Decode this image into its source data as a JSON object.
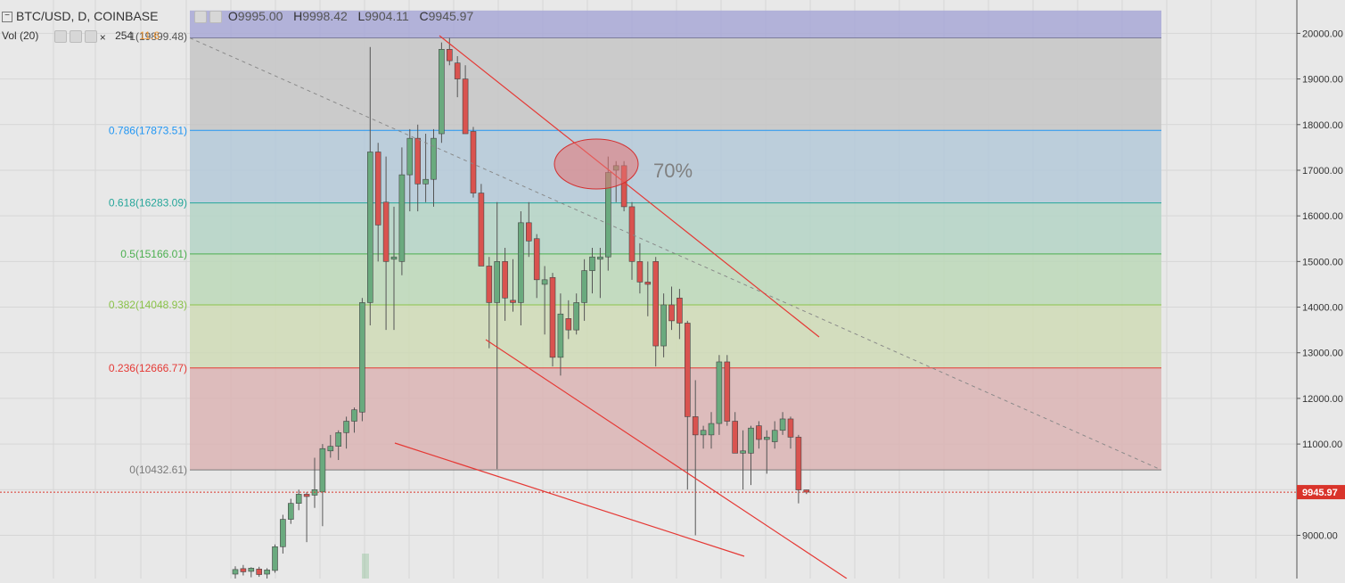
{
  "header": {
    "symbol": "BTC/USD, D, COINBASE",
    "open_label": "O",
    "open": "9995.00",
    "high_label": "H",
    "high": "9998.42",
    "low_label": "L",
    "low": "9904.11",
    "close_label": "C",
    "close": "9945.97",
    "volume_label": "Vol (20)",
    "volume_value": "254",
    "volume_ma": "11.6"
  },
  "colors": {
    "up": "#6aaa7e",
    "down": "#d9534f",
    "trendline": "#e53935",
    "price_tag": "#d9342b",
    "background": "#e8e8e8"
  },
  "chart_data": {
    "type": "candlestick",
    "title": "BTC/USD, D, COINBASE",
    "current_price": 9945.97,
    "current_price_label": "9945.97",
    "ylim": [
      8000,
      20500
    ],
    "y_ticks": [
      "20000.00",
      "19000.00",
      "18000.00",
      "17000.00",
      "16000.00",
      "15000.00",
      "14000.00",
      "13000.00",
      "12000.00",
      "11000.00",
      "10000.00",
      "9000.00"
    ],
    "fibonacci": [
      {
        "label": "1(19899.48)",
        "level": 1,
        "value": 19899.48,
        "color": "#7d7d9c"
      },
      {
        "label": "0.786(17873.51)",
        "level": 0.786,
        "value": 17873.51,
        "color": "#2196f3"
      },
      {
        "label": "0.618(16283.09)",
        "level": 0.618,
        "value": 16283.09,
        "color": "#26a69a"
      },
      {
        "label": "0.5(15166.01)",
        "level": 0.5,
        "value": 15166.01,
        "color": "#4caf50"
      },
      {
        "label": "0.382(14048.93)",
        "level": 0.382,
        "value": 14048.93,
        "color": "#8bc34a"
      },
      {
        "label": "0.236(12666.77)",
        "level": 0.236,
        "value": 12666.77,
        "color": "#e53935"
      },
      {
        "label": "0(10432.61)",
        "level": 0,
        "value": 10432.61,
        "color": "#7a7a7a"
      }
    ],
    "fib_bands": [
      {
        "from": 20500,
        "to": 19899.48,
        "color": "#a8a8d6"
      },
      {
        "from": 19899.48,
        "to": 17873.51,
        "color": "#c6c6c6"
      },
      {
        "from": 17873.51,
        "to": 16283.09,
        "color": "#b4c9d8"
      },
      {
        "from": 16283.09,
        "to": 15166.01,
        "color": "#b4d4c6"
      },
      {
        "from": 15166.01,
        "to": 14048.93,
        "color": "#bcd8b8"
      },
      {
        "from": 14048.93,
        "to": 12666.77,
        "color": "#cfdbb6"
      },
      {
        "from": 12666.77,
        "to": 10432.61,
        "color": "#dbb4b4"
      }
    ],
    "annotation": "70%",
    "candles": [
      {
        "o": 8150,
        "h": 8320,
        "l": 8050,
        "c": 8250
      },
      {
        "o": 8270,
        "h": 8350,
        "l": 8120,
        "c": 8200
      },
      {
        "o": 8210,
        "h": 8300,
        "l": 8080,
        "c": 8280
      },
      {
        "o": 8260,
        "h": 8310,
        "l": 8090,
        "c": 8140
      },
      {
        "o": 8150,
        "h": 8280,
        "l": 8050,
        "c": 8240
      },
      {
        "o": 8230,
        "h": 8800,
        "l": 8180,
        "c": 8750
      },
      {
        "o": 8750,
        "h": 9450,
        "l": 8600,
        "c": 9350
      },
      {
        "o": 9350,
        "h": 9800,
        "l": 9250,
        "c": 9700
      },
      {
        "o": 9700,
        "h": 10000,
        "l": 9550,
        "c": 9900
      },
      {
        "o": 9900,
        "h": 9950,
        "l": 8850,
        "c": 9850
      },
      {
        "o": 9880,
        "h": 10700,
        "l": 9600,
        "c": 10000
      },
      {
        "o": 9950,
        "h": 11000,
        "l": 9200,
        "c": 10900
      },
      {
        "o": 10850,
        "h": 11200,
        "l": 10700,
        "c": 10950
      },
      {
        "o": 10950,
        "h": 11300,
        "l": 10650,
        "c": 11250
      },
      {
        "o": 11250,
        "h": 11600,
        "l": 10900,
        "c": 11500
      },
      {
        "o": 11500,
        "h": 11800,
        "l": 11250,
        "c": 11750
      },
      {
        "o": 11700,
        "h": 14200,
        "l": 11500,
        "c": 14100
      },
      {
        "o": 14100,
        "h": 19700,
        "l": 13600,
        "c": 17400
      },
      {
        "o": 17400,
        "h": 17600,
        "l": 15000,
        "c": 15800
      },
      {
        "o": 16300,
        "h": 17300,
        "l": 13500,
        "c": 15000
      },
      {
        "o": 15050,
        "h": 16200,
        "l": 13500,
        "c": 15100
      },
      {
        "o": 15000,
        "h": 17500,
        "l": 14700,
        "c": 16900
      },
      {
        "o": 16900,
        "h": 17900,
        "l": 16100,
        "c": 17700
      },
      {
        "o": 17700,
        "h": 18000,
        "l": 16100,
        "c": 16700
      },
      {
        "o": 16700,
        "h": 17800,
        "l": 16300,
        "c": 16800
      },
      {
        "o": 16800,
        "h": 17900,
        "l": 16200,
        "c": 17700
      },
      {
        "o": 17800,
        "h": 19800,
        "l": 17600,
        "c": 19650
      },
      {
        "o": 19650,
        "h": 19900,
        "l": 19300,
        "c": 19400
      },
      {
        "o": 19350,
        "h": 19500,
        "l": 18600,
        "c": 19000
      },
      {
        "o": 19000,
        "h": 19300,
        "l": 17800,
        "c": 17800
      },
      {
        "o": 17850,
        "h": 17950,
        "l": 16400,
        "c": 16500
      },
      {
        "o": 16500,
        "h": 16700,
        "l": 14900,
        "c": 14900
      },
      {
        "o": 14900,
        "h": 15100,
        "l": 13100,
        "c": 14100
      },
      {
        "o": 14100,
        "h": 16300,
        "l": 10450,
        "c": 15000
      },
      {
        "o": 15000,
        "h": 15300,
        "l": 13700,
        "c": 14200
      },
      {
        "o": 14150,
        "h": 15050,
        "l": 13900,
        "c": 14100
      },
      {
        "o": 14100,
        "h": 16100,
        "l": 13600,
        "c": 15850
      },
      {
        "o": 15850,
        "h": 16300,
        "l": 15100,
        "c": 15450
      },
      {
        "o": 15500,
        "h": 15600,
        "l": 14200,
        "c": 14600
      },
      {
        "o": 14500,
        "h": 14900,
        "l": 13400,
        "c": 14600
      },
      {
        "o": 14650,
        "h": 14750,
        "l": 12700,
        "c": 12900
      },
      {
        "o": 12900,
        "h": 14300,
        "l": 12500,
        "c": 13850
      },
      {
        "o": 13750,
        "h": 14150,
        "l": 13300,
        "c": 13500
      },
      {
        "o": 13500,
        "h": 14300,
        "l": 13400,
        "c": 14100
      },
      {
        "o": 14100,
        "h": 15050,
        "l": 13700,
        "c": 14800
      },
      {
        "o": 14800,
        "h": 15300,
        "l": 14300,
        "c": 15100
      },
      {
        "o": 15050,
        "h": 15300,
        "l": 14200,
        "c": 15100
      },
      {
        "o": 15100,
        "h": 17300,
        "l": 14800,
        "c": 16950
      },
      {
        "o": 17000,
        "h": 17200,
        "l": 16300,
        "c": 17100
      },
      {
        "o": 17100,
        "h": 17200,
        "l": 16100,
        "c": 16200
      },
      {
        "o": 16200,
        "h": 16300,
        "l": 14600,
        "c": 15000
      },
      {
        "o": 15000,
        "h": 15400,
        "l": 14300,
        "c": 14550
      },
      {
        "o": 14550,
        "h": 15000,
        "l": 13800,
        "c": 14500
      },
      {
        "o": 15000,
        "h": 15100,
        "l": 12700,
        "c": 13150
      },
      {
        "o": 13150,
        "h": 14300,
        "l": 12900,
        "c": 14050
      },
      {
        "o": 14050,
        "h": 14450,
        "l": 13500,
        "c": 13700
      },
      {
        "o": 14200,
        "h": 14400,
        "l": 13300,
        "c": 13650
      },
      {
        "o": 13650,
        "h": 13700,
        "l": 10000,
        "c": 11600
      },
      {
        "o": 11600,
        "h": 12400,
        "l": 9000,
        "c": 11200
      },
      {
        "o": 11200,
        "h": 11400,
        "l": 10900,
        "c": 11300
      },
      {
        "o": 11200,
        "h": 11700,
        "l": 10900,
        "c": 11450
      },
      {
        "o": 11450,
        "h": 12950,
        "l": 11200,
        "c": 12800
      },
      {
        "o": 12800,
        "h": 12950,
        "l": 11400,
        "c": 11500
      },
      {
        "o": 11500,
        "h": 11700,
        "l": 10800,
        "c": 10800
      },
      {
        "o": 10800,
        "h": 11300,
        "l": 10000,
        "c": 10850
      },
      {
        "o": 10800,
        "h": 11400,
        "l": 10100,
        "c": 11350
      },
      {
        "o": 11400,
        "h": 11500,
        "l": 10900,
        "c": 11100
      },
      {
        "o": 11100,
        "h": 11300,
        "l": 10350,
        "c": 11150
      },
      {
        "o": 11050,
        "h": 11500,
        "l": 10900,
        "c": 11300
      },
      {
        "o": 11300,
        "h": 11700,
        "l": 11200,
        "c": 11550
      },
      {
        "o": 11550,
        "h": 11600,
        "l": 10900,
        "c": 11150
      },
      {
        "o": 11150,
        "h": 11200,
        "l": 9700,
        "c": 9995
      },
      {
        "o": 9995,
        "h": 9998.42,
        "l": 9904.11,
        "c": 9945.97
      }
    ]
  }
}
